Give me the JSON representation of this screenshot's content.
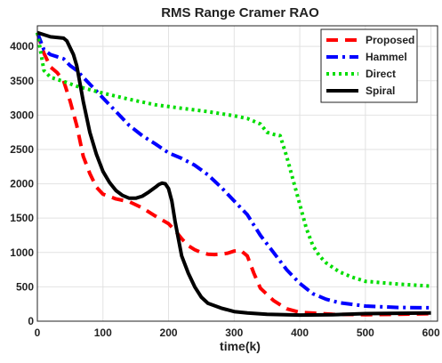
{
  "chart_data": {
    "type": "line",
    "title": "RMS Range Cramer RAO",
    "xlabel": "time(k)",
    "ylabel": "",
    "xlim": [
      0,
      610
    ],
    "ylim": [
      0,
      4300
    ],
    "xticks": [
      0,
      100,
      200,
      300,
      400,
      500,
      600
    ],
    "yticks": [
      0,
      500,
      1000,
      1500,
      2000,
      2500,
      3000,
      3500,
      4000
    ],
    "grid": true,
    "legend_position": "top-right",
    "series": [
      {
        "name": "Proposed",
        "color": "#ff0000",
        "style": "dashed",
        "x": [
          0,
          10,
          20,
          30,
          40,
          50,
          60,
          70,
          80,
          90,
          100,
          120,
          140,
          160,
          180,
          200,
          210,
          220,
          230,
          240,
          250,
          260,
          270,
          280,
          290,
          300,
          310,
          320,
          330,
          340,
          360,
          380,
          400,
          450,
          500,
          550,
          600
        ],
        "y": [
          4200,
          3900,
          3700,
          3620,
          3500,
          3200,
          2850,
          2400,
          2150,
          1950,
          1850,
          1780,
          1740,
          1650,
          1530,
          1420,
          1320,
          1200,
          1100,
          1040,
          1000,
          975,
          970,
          975,
          990,
          1020,
          1030,
          950,
          700,
          480,
          300,
          180,
          130,
          100,
          95,
          100,
          110
        ]
      },
      {
        "name": "Hammel",
        "color": "#0000ff",
        "style": "dashdot",
        "x": [
          0,
          10,
          20,
          30,
          40,
          50,
          60,
          70,
          80,
          90,
          100,
          120,
          140,
          160,
          180,
          200,
          220,
          240,
          260,
          280,
          300,
          320,
          330,
          340,
          360,
          380,
          400,
          420,
          440,
          460,
          500,
          550,
          600
        ],
        "y": [
          4200,
          3950,
          3880,
          3850,
          3820,
          3720,
          3650,
          3550,
          3450,
          3350,
          3250,
          3050,
          2850,
          2700,
          2580,
          2450,
          2370,
          2270,
          2130,
          1950,
          1750,
          1550,
          1400,
          1250,
          1000,
          750,
          550,
          400,
          320,
          270,
          220,
          200,
          195
        ]
      },
      {
        "name": "Direct",
        "color": "#00dd00",
        "style": "dotted",
        "x": [
          0,
          10,
          20,
          30,
          40,
          60,
          80,
          100,
          140,
          180,
          220,
          260,
          300,
          320,
          340,
          350,
          360,
          370,
          380,
          390,
          400,
          410,
          420,
          430,
          440,
          460,
          480,
          500,
          550,
          600
        ],
        "y": [
          4200,
          3650,
          3550,
          3520,
          3490,
          3420,
          3370,
          3320,
          3230,
          3150,
          3100,
          3050,
          2990,
          2950,
          2870,
          2750,
          2720,
          2700,
          2400,
          2050,
          1700,
          1350,
          1100,
          950,
          850,
          720,
          640,
          580,
          540,
          510
        ]
      },
      {
        "name": "Spiral",
        "color": "#000000",
        "style": "solid",
        "x": [
          0,
          10,
          20,
          30,
          40,
          45,
          50,
          55,
          60,
          70,
          80,
          90,
          100,
          110,
          120,
          130,
          140,
          150,
          160,
          170,
          180,
          185,
          190,
          195,
          200,
          205,
          210,
          220,
          230,
          240,
          250,
          260,
          280,
          300,
          320,
          350,
          400,
          450,
          500,
          550,
          600
        ],
        "y": [
          4200,
          4170,
          4140,
          4130,
          4120,
          4080,
          3980,
          3880,
          3720,
          3200,
          2750,
          2430,
          2180,
          2020,
          1900,
          1830,
          1790,
          1790,
          1820,
          1880,
          1950,
          1990,
          2010,
          2000,
          1930,
          1750,
          1450,
          950,
          700,
          500,
          350,
          260,
          190,
          140,
          120,
          100,
          90,
          95,
          110,
          115,
          120
        ]
      }
    ]
  }
}
